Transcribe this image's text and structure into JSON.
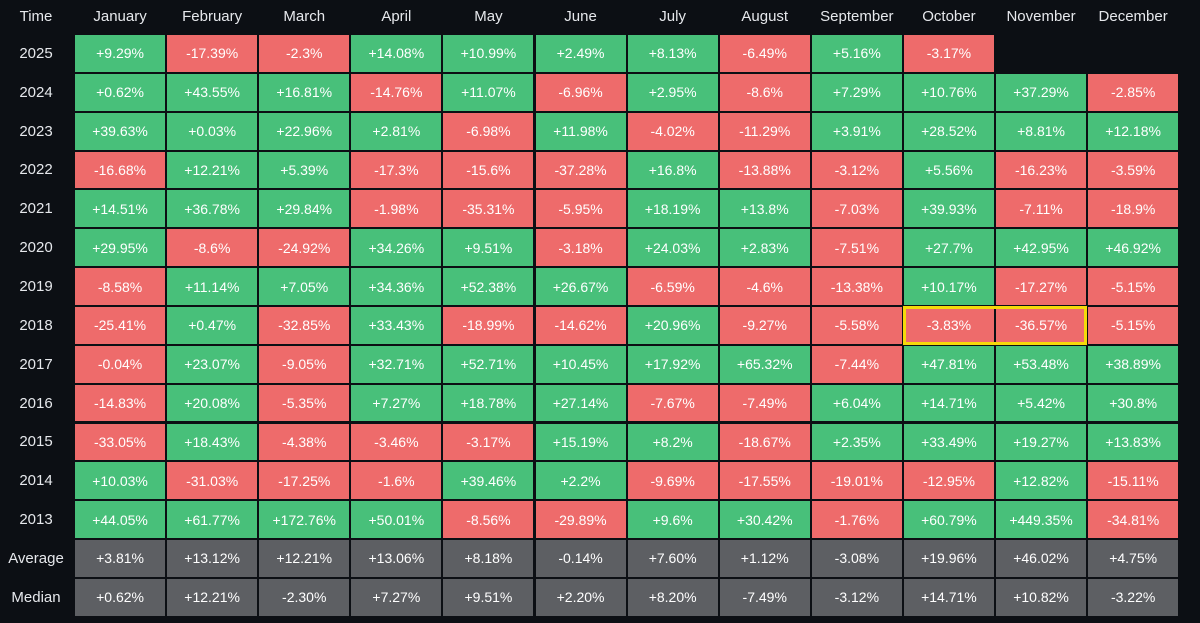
{
  "chart_data": {
    "type": "heatmap",
    "corner_label": "Time",
    "columns": [
      "January",
      "February",
      "March",
      "April",
      "May",
      "June",
      "July",
      "August",
      "September",
      "October",
      "November",
      "December"
    ],
    "rows": [
      {
        "label": "2025",
        "values": [
          "+9.29%",
          "-17.39%",
          "-2.3%",
          "+14.08%",
          "+10.99%",
          "+2.49%",
          "+8.13%",
          "-6.49%",
          "+5.16%",
          "-3.17%",
          null,
          null
        ]
      },
      {
        "label": "2024",
        "values": [
          "+0.62%",
          "+43.55%",
          "+16.81%",
          "-14.76%",
          "+11.07%",
          "-6.96%",
          "+2.95%",
          "-8.6%",
          "+7.29%",
          "+10.76%",
          "+37.29%",
          "-2.85%"
        ]
      },
      {
        "label": "2023",
        "values": [
          "+39.63%",
          "+0.03%",
          "+22.96%",
          "+2.81%",
          "-6.98%",
          "+11.98%",
          "-4.02%",
          "-11.29%",
          "+3.91%",
          "+28.52%",
          "+8.81%",
          "+12.18%"
        ]
      },
      {
        "label": "2022",
        "values": [
          "-16.68%",
          "+12.21%",
          "+5.39%",
          "-17.3%",
          "-15.6%",
          "-37.28%",
          "+16.8%",
          "-13.88%",
          "-3.12%",
          "+5.56%",
          "-16.23%",
          "-3.59%"
        ]
      },
      {
        "label": "2021",
        "values": [
          "+14.51%",
          "+36.78%",
          "+29.84%",
          "-1.98%",
          "-35.31%",
          "-5.95%",
          "+18.19%",
          "+13.8%",
          "-7.03%",
          "+39.93%",
          "-7.11%",
          "-18.9%"
        ]
      },
      {
        "label": "2020",
        "values": [
          "+29.95%",
          "-8.6%",
          "-24.92%",
          "+34.26%",
          "+9.51%",
          "-3.18%",
          "+24.03%",
          "+2.83%",
          "-7.51%",
          "+27.7%",
          "+42.95%",
          "+46.92%"
        ]
      },
      {
        "label": "2019",
        "values": [
          "-8.58%",
          "+11.14%",
          "+7.05%",
          "+34.36%",
          "+52.38%",
          "+26.67%",
          "-6.59%",
          "-4.6%",
          "-13.38%",
          "+10.17%",
          "-17.27%",
          "-5.15%"
        ]
      },
      {
        "label": "2018",
        "values": [
          "-25.41%",
          "+0.47%",
          "-32.85%",
          "+33.43%",
          "-18.99%",
          "-14.62%",
          "+20.96%",
          "-9.27%",
          "-5.58%",
          "-3.83%",
          "-36.57%",
          "-5.15%"
        ]
      },
      {
        "label": "2017",
        "values": [
          "-0.04%",
          "+23.07%",
          "-9.05%",
          "+32.71%",
          "+52.71%",
          "+10.45%",
          "+17.92%",
          "+65.32%",
          "-7.44%",
          "+47.81%",
          "+53.48%",
          "+38.89%"
        ]
      },
      {
        "label": "2016",
        "values": [
          "-14.83%",
          "+20.08%",
          "-5.35%",
          "+7.27%",
          "+18.78%",
          "+27.14%",
          "-7.67%",
          "-7.49%",
          "+6.04%",
          "+14.71%",
          "+5.42%",
          "+30.8%"
        ]
      },
      {
        "label": "2015",
        "values": [
          "-33.05%",
          "+18.43%",
          "-4.38%",
          "-3.46%",
          "-3.17%",
          "+15.19%",
          "+8.2%",
          "-18.67%",
          "+2.35%",
          "+33.49%",
          "+19.27%",
          "+13.83%"
        ]
      },
      {
        "label": "2014",
        "values": [
          "+10.03%",
          "-31.03%",
          "-17.25%",
          "-1.6%",
          "+39.46%",
          "+2.2%",
          "-9.69%",
          "-17.55%",
          "-19.01%",
          "-12.95%",
          "+12.82%",
          "-15.11%"
        ]
      },
      {
        "label": "2013",
        "values": [
          "+44.05%",
          "+61.77%",
          "+172.76%",
          "+50.01%",
          "-8.56%",
          "-29.89%",
          "+9.6%",
          "+30.42%",
          "-1.76%",
          "+60.79%",
          "+449.35%",
          "-34.81%"
        ]
      }
    ],
    "summary_rows": [
      {
        "label": "Average",
        "values": [
          "+3.81%",
          "+13.12%",
          "+12.21%",
          "+13.06%",
          "+8.18%",
          "-0.14%",
          "+7.60%",
          "+1.12%",
          "-3.08%",
          "+19.96%",
          "+46.02%",
          "+4.75%"
        ]
      },
      {
        "label": "Median",
        "values": [
          "+0.62%",
          "+12.21%",
          "-2.30%",
          "+7.27%",
          "+9.51%",
          "+2.20%",
          "+8.20%",
          "-7.49%",
          "-3.12%",
          "+14.71%",
          "+10.82%",
          "-3.22%"
        ]
      }
    ],
    "highlight": {
      "row": "2018",
      "columns": [
        "October",
        "November"
      ],
      "color": "#f5d90a"
    },
    "colors": {
      "positive": "#48c07a",
      "negative": "#ee6b6b",
      "summary": "#5d5f63",
      "background": "#0c0f14",
      "header_text": "#e6e8ec",
      "cell_text": "#ffffff"
    }
  }
}
